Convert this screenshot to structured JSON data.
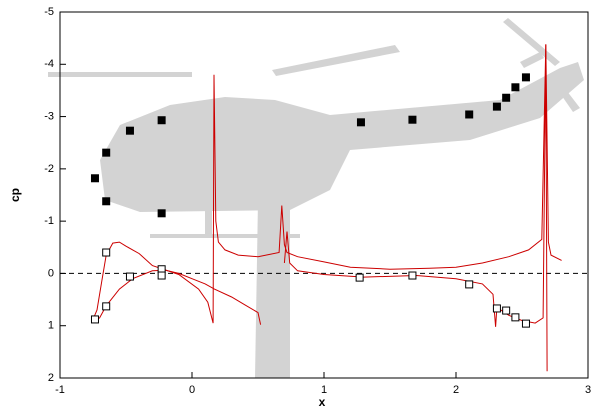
{
  "chart_data": {
    "type": "line",
    "xlabel": "x",
    "ylabel": "cp",
    "xlim": [
      -1,
      3
    ],
    "xticks": [
      -1,
      0,
      1,
      2,
      3
    ],
    "ylim": [
      -5,
      2
    ],
    "yticks": [
      -5,
      -4,
      -3,
      -2,
      -1,
      0,
      1,
      2
    ],
    "y_inverted": true,
    "reference_line": {
      "y": 0,
      "color": "#000000",
      "dashed": true
    },
    "series": [
      {
        "color": "#cc0000",
        "marker": "none",
        "x": [
          -0.75,
          -0.72,
          -0.68,
          -0.65,
          -0.6,
          -0.55,
          -0.5,
          -0.4,
          -0.3,
          -0.1,
          0.05,
          0.12,
          0.16,
          0.167,
          0.18,
          0.2,
          0.25,
          0.35,
          0.5,
          0.66,
          0.68,
          0.7,
          0.72,
          0.8,
          1.0,
          1.2,
          1.5,
          1.8,
          2.0,
          2.2,
          2.4,
          2.55,
          2.65,
          2.68,
          2.7,
          2.72,
          2.8
        ],
        "values": [
          0.88,
          0.7,
          0.1,
          -0.35,
          -0.58,
          -0.6,
          -0.52,
          -0.38,
          -0.15,
          0.02,
          0.3,
          0.55,
          0.95,
          -3.8,
          -1.0,
          -0.6,
          -0.45,
          -0.35,
          -0.32,
          -0.4,
          -1.3,
          -0.55,
          -0.4,
          -0.32,
          -0.22,
          -0.12,
          -0.08,
          -0.1,
          -0.12,
          -0.2,
          -0.32,
          -0.45,
          -0.65,
          -4.38,
          -0.6,
          -0.35,
          -0.25
        ]
      },
      {
        "color": "#cc0000",
        "marker": "none",
        "x": [
          -0.75,
          -0.7,
          -0.65,
          -0.55,
          -0.45,
          -0.3,
          -0.2,
          -0.1,
          0.0,
          0.1,
          0.17,
          0.3,
          0.4,
          0.5,
          0.52,
          null,
          0.7,
          0.72,
          0.74,
          0.8,
          1.0,
          1.3,
          1.7,
          2.0,
          2.2,
          2.28,
          2.3,
          2.31,
          2.4,
          2.5,
          2.6,
          2.66,
          2.68,
          2.69
        ],
        "values": [
          0.92,
          0.85,
          0.62,
          0.3,
          0.1,
          -0.05,
          -0.06,
          0.0,
          0.1,
          0.2,
          0.3,
          0.45,
          0.6,
          0.75,
          0.98,
          null,
          -0.2,
          -0.8,
          -0.2,
          -0.05,
          0.02,
          0.07,
          0.04,
          0.1,
          0.2,
          0.4,
          1.02,
          0.65,
          0.8,
          0.9,
          0.95,
          0.85,
          -4.38,
          1.87
        ]
      },
      {
        "color": "#000000",
        "marker": "filled-square",
        "x": [
          -0.735,
          -0.65,
          -0.65,
          -0.47,
          -0.23,
          -0.23,
          1.28,
          1.67,
          2.1,
          2.31,
          2.38,
          2.45,
          2.53
        ],
        "values": [
          -1.82,
          -2.31,
          -1.38,
          -2.73,
          -2.93,
          -1.15,
          -2.89,
          -2.94,
          -3.04,
          -3.19,
          -3.36,
          -3.56,
          -3.75
        ]
      },
      {
        "color": "#000000",
        "marker": "open-square",
        "x": [
          -0.735,
          -0.65,
          -0.65,
          -0.47,
          -0.23,
          -0.23,
          1.27,
          1.67,
          2.1,
          2.31,
          2.38,
          2.45,
          2.53
        ],
        "values": [
          0.88,
          0.63,
          -0.4,
          0.06,
          -0.08,
          0.04,
          0.08,
          0.04,
          0.21,
          0.67,
          0.71,
          0.84,
          0.96
        ]
      }
    ]
  }
}
